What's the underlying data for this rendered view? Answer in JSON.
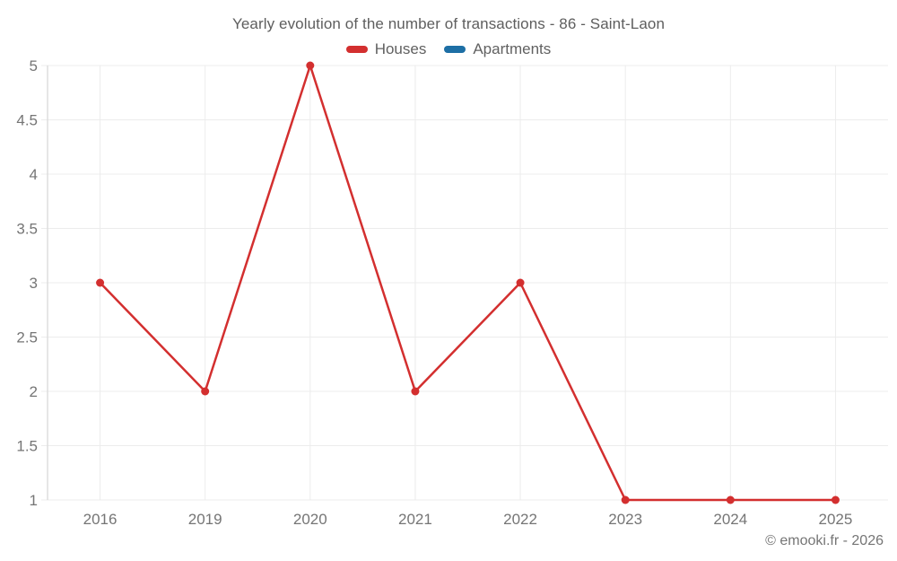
{
  "chart_data": {
    "type": "line",
    "title": "Yearly evolution of the number of transactions - 86 - Saint-Laon",
    "categories": [
      "2016",
      "2019",
      "2020",
      "2021",
      "2022",
      "2023",
      "2024",
      "2025"
    ],
    "series": [
      {
        "name": "Houses",
        "color": "#d32f2f",
        "values": [
          3,
          2,
          5,
          2,
          3,
          1,
          1,
          1
        ]
      },
      {
        "name": "Apartments",
        "color": "#1d6fa5",
        "values": []
      }
    ],
    "yticks": [
      1,
      1.5,
      2,
      2.5,
      3,
      3.5,
      4,
      4.5,
      5
    ],
    "ylim": [
      1,
      5
    ],
    "grid": true,
    "legend_position": "top",
    "xlabel": "",
    "ylabel": ""
  },
  "footer": {
    "copyright": "© emooki.fr - 2026"
  },
  "colors": {
    "title_text": "#5e5e5e",
    "legend_text": "#616161",
    "axis_text": "#757575",
    "gridline": "#ececec",
    "axis_line": "#dddddd",
    "background": "#ffffff"
  }
}
